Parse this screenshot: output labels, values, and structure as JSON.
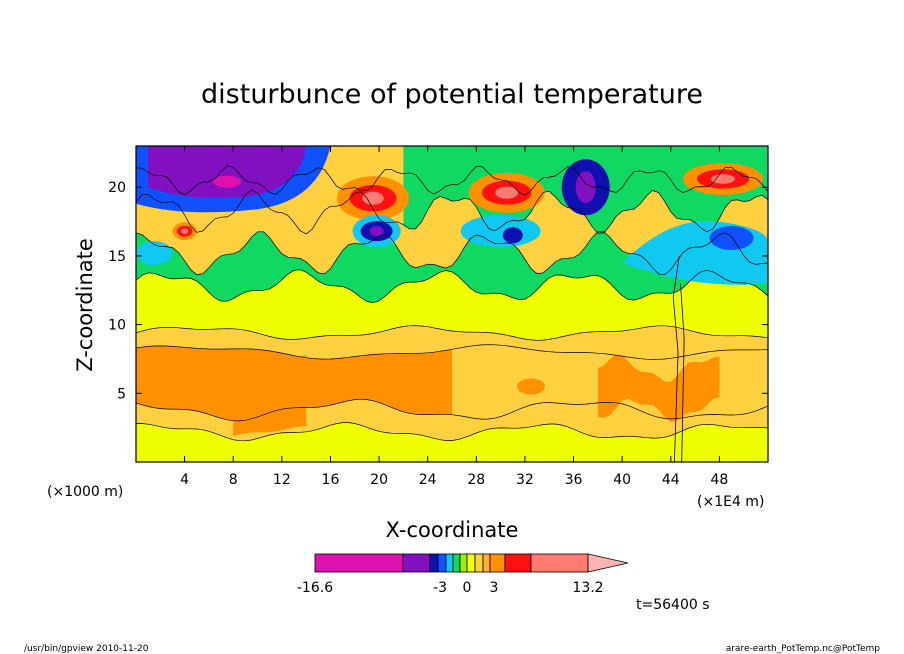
{
  "chart_data": {
    "type": "heatmap",
    "title": "disturbunce of potential temperature",
    "xlabel": "X-coordinate",
    "ylabel": "Z-coordinate",
    "x_unit_left": "(×1000 m)",
    "x_unit_right": "(×1E4 m)",
    "xlim": [
      0,
      52
    ],
    "ylim": [
      0,
      23
    ],
    "x_ticks": [
      4,
      8,
      12,
      16,
      20,
      24,
      28,
      32,
      36,
      40,
      44,
      48
    ],
    "y_ticks": [
      5,
      10,
      15,
      20
    ],
    "time_label": "t=56400 s",
    "colorbar": {
      "min": -16.6,
      "max": 13.2,
      "tick_labels": [
        "-16.6",
        "-3",
        "0",
        "3",
        "13.2"
      ],
      "tick_values": [
        -16.6,
        -3,
        0,
        3,
        13.2
      ],
      "colors": [
        "#e010b0",
        "#8010c0",
        "#1010b0",
        "#1050ff",
        "#10c8f0",
        "#10d860",
        "#a0f000",
        "#f0ff00",
        "#ffd040",
        "#ffb030",
        "#ff9000",
        "#ff1010",
        "#ff7a70",
        "#ffb4b4"
      ],
      "extend": "max"
    },
    "features": [
      {
        "x": 1.0,
        "z": 20.8,
        "value": -10
      },
      {
        "x": 8.5,
        "z": 20.5,
        "value": -13
      },
      {
        "x": 4.0,
        "z": 17.0,
        "value": 5
      },
      {
        "x": 19.8,
        "z": 19.0,
        "value": 10
      },
      {
        "x": 19.8,
        "z": 16.8,
        "value": -6
      },
      {
        "x": 30.5,
        "z": 19.5,
        "value": 9
      },
      {
        "x": 36.5,
        "z": 20.0,
        "value": -8
      },
      {
        "x": 31.0,
        "z": 16.5,
        "value": -5
      },
      {
        "x": 48.5,
        "z": 20.5,
        "value": 9
      },
      {
        "x": 48.5,
        "z": 16.0,
        "value": -3
      },
      {
        "x": 11.0,
        "z": 5.5,
        "value": 3
      },
      {
        "x": 24.0,
        "z": 6.5,
        "value": 2.5
      },
      {
        "x": 42.0,
        "z": 6.0,
        "value": 2
      }
    ]
  },
  "footer": {
    "left": "/usr/bin/gpview   2010-11-20",
    "right": "arare-earth_PotTemp.nc@PotTemp"
  }
}
